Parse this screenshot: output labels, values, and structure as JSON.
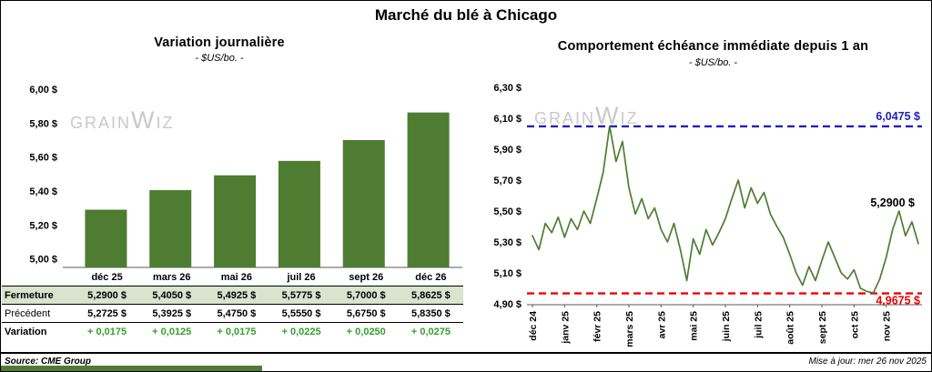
{
  "page": {
    "title": "Marché du blé à Chicago",
    "source": "Source: CME Group",
    "updated": "Mise à jour: mer 26 nov 2025",
    "watermark": "GRAINWIZ"
  },
  "colors": {
    "green": "#4e7d32",
    "positive": "#33a02c",
    "table_highlight": "#d8e4ce",
    "blue": "#2020c0",
    "red": "#f00000",
    "watermark": "#c9c9c9",
    "axis": "#595959"
  },
  "table": {
    "rows": [
      {
        "label": "Fermeture",
        "values": [
          "5,2900  $",
          "5,4050  $",
          "5,4925  $",
          "5,5775  $",
          "5,7000  $",
          "5,8625  $"
        ]
      },
      {
        "label": "Précédent",
        "values": [
          "5,2725  $",
          "5,3925  $",
          "5,4750  $",
          "5,5550  $",
          "5,6750  $",
          "5,8350  $"
        ]
      },
      {
        "label": "Variation",
        "values": [
          "+ 0,0175",
          "+ 0,0125",
          "+ 0,0175",
          "+ 0,0225",
          "+ 0,0250",
          "+ 0,0275"
        ]
      }
    ]
  },
  "chart_data": [
    {
      "type": "bar",
      "title": "Variation  journalière",
      "subtitle": "- $US/bo. -",
      "categories": [
        "déc 25",
        "mars 26",
        "mai 26",
        "juil 26",
        "sept 26",
        "déc 26"
      ],
      "values": [
        5.29,
        5.405,
        5.4925,
        5.5775,
        5.7,
        5.8625
      ],
      "ylim": [
        4.95,
        6.0
      ],
      "yticks": [
        {
          "value": 5.0,
          "label": "5,00 $"
        },
        {
          "value": 5.2,
          "label": "5,20 $"
        },
        {
          "value": 5.4,
          "label": "5,40 $"
        },
        {
          "value": 5.6,
          "label": "5,60 $"
        },
        {
          "value": 5.8,
          "label": "5,80 $"
        },
        {
          "value": 6.0,
          "label": "6,00 $"
        }
      ],
      "grid": false,
      "legend": false
    },
    {
      "type": "line",
      "title": "Comportement  échéance  immédiate  depuis 1 an",
      "subtitle": "- $US/bo. -",
      "x_labels": [
        "déc 24",
        "janv 25",
        "févr 25",
        "mars 25",
        "avr 25",
        "mai 25",
        "juin 25",
        "juil 25",
        "août 25",
        "sept 25",
        "oct 25",
        "nov 25"
      ],
      "values": [
        5.34,
        5.25,
        5.42,
        5.36,
        5.46,
        5.33,
        5.45,
        5.38,
        5.5,
        5.42,
        5.58,
        5.75,
        6.05,
        5.82,
        5.95,
        5.65,
        5.48,
        5.58,
        5.45,
        5.52,
        5.38,
        5.3,
        5.42,
        5.25,
        5.05,
        5.32,
        5.22,
        5.38,
        5.28,
        5.36,
        5.45,
        5.58,
        5.7,
        5.52,
        5.65,
        5.55,
        5.62,
        5.48,
        5.4,
        5.33,
        5.22,
        5.1,
        5.02,
        5.14,
        5.05,
        5.18,
        5.3,
        5.2,
        5.1,
        5.06,
        5.12,
        5.0,
        4.98,
        4.97,
        5.06,
        5.2,
        5.38,
        5.5,
        5.34,
        5.43,
        5.29
      ],
      "ylim": [
        4.9,
        6.3
      ],
      "yticks": [
        {
          "value": 4.9,
          "label": "4,90 $"
        },
        {
          "value": 5.1,
          "label": "5,10 $"
        },
        {
          "value": 5.3,
          "label": "5,30 $"
        },
        {
          "value": 5.5,
          "label": "5,50 $"
        },
        {
          "value": 5.7,
          "label": "5,70 $"
        },
        {
          "value": 5.9,
          "label": "5,90 $"
        },
        {
          "value": 6.1,
          "label": "6,10 $"
        },
        {
          "value": 6.3,
          "label": "6,30 $"
        }
      ],
      "ref_lines": [
        {
          "value": 6.0475,
          "label": "6,0475  $",
          "color": "#2020c0",
          "style": "dashed",
          "label_position": "above-right"
        },
        {
          "value": 4.9675,
          "label": "4,9675  $",
          "color": "#f00000",
          "style": "dashed",
          "label_position": "below-right"
        }
      ],
      "last_label": {
        "value": 5.29,
        "label": "5,2900 $",
        "anchor_value": 5.53
      },
      "grid": false,
      "legend": false
    }
  ]
}
